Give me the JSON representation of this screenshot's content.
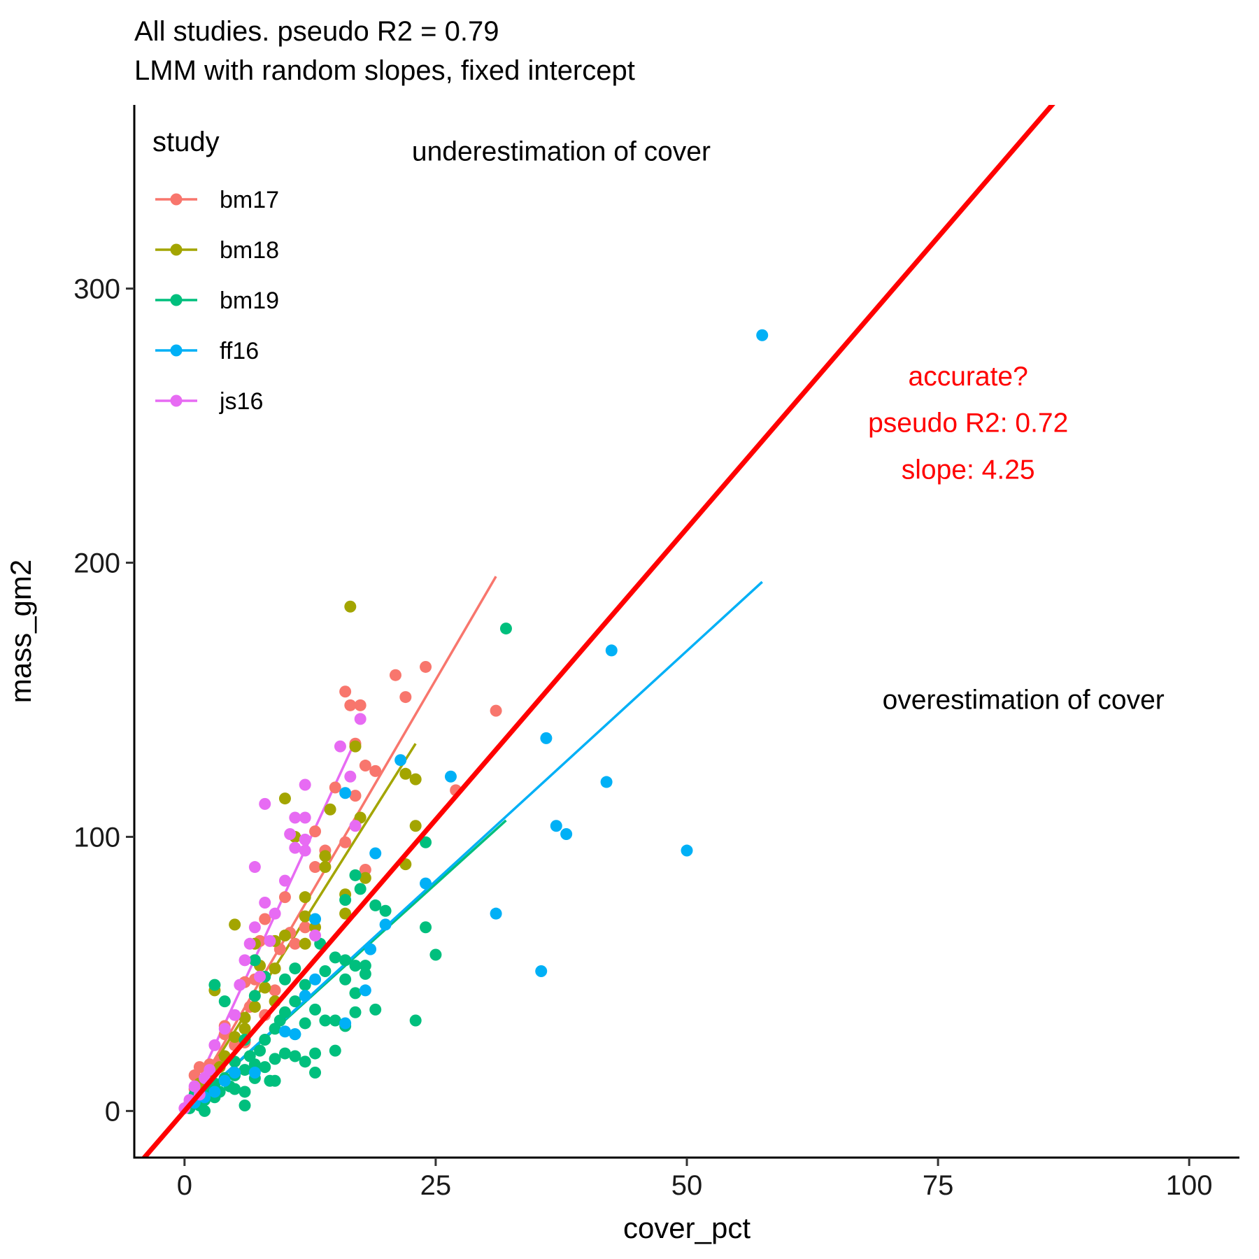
{
  "chart_data": {
    "type": "scatter",
    "title": "All studies. pseudo R2 =  0.79",
    "subtitle": "LMM with random slopes, fixed intercept",
    "xlabel": "cover_pct",
    "ylabel": "mass_gm2",
    "xlim": [
      -5,
      105
    ],
    "ylim": [
      -17,
      367
    ],
    "xticks": [
      0,
      25,
      50,
      75,
      100
    ],
    "yticks": [
      0,
      100,
      200,
      300
    ],
    "grid": false,
    "legend": {
      "title": "study",
      "position": "top-left",
      "items": [
        {
          "label": "bm17",
          "color": "#F8766D"
        },
        {
          "label": "bm18",
          "color": "#A3A500"
        },
        {
          "label": "bm19",
          "color": "#00BF7D"
        },
        {
          "label": "ff16",
          "color": "#00B0F6"
        },
        {
          "label": "js16",
          "color": "#E76BF3"
        }
      ]
    },
    "series": [
      {
        "name": "bm17",
        "color": "#F8766D",
        "fit": {
          "x": [
            0,
            31
          ],
          "y": [
            0,
            195
          ]
        },
        "points": [
          [
            0.5,
            3
          ],
          [
            1,
            8
          ],
          [
            1,
            13
          ],
          [
            1.5,
            16
          ],
          [
            2,
            12
          ],
          [
            2.5,
            17
          ],
          [
            3,
            6
          ],
          [
            3.5,
            18
          ],
          [
            4,
            31
          ],
          [
            5,
            14
          ],
          [
            5,
            24
          ],
          [
            6,
            25
          ],
          [
            6.5,
            38
          ],
          [
            7,
            48
          ],
          [
            7,
            55
          ],
          [
            7.5,
            62
          ],
          [
            8,
            70
          ],
          [
            9,
            44
          ],
          [
            9.5,
            59
          ],
          [
            10,
            78
          ],
          [
            10.5,
            65
          ],
          [
            11,
            61
          ],
          [
            12,
            67
          ],
          [
            13,
            89
          ],
          [
            13,
            102
          ],
          [
            14,
            95
          ],
          [
            15,
            118
          ],
          [
            16,
            98
          ],
          [
            17,
            134
          ],
          [
            16.5,
            148
          ],
          [
            16,
            153
          ],
          [
            17.5,
            148
          ],
          [
            18,
            88
          ],
          [
            17,
            115
          ],
          [
            18,
            126
          ],
          [
            19,
            124
          ],
          [
            21,
            159
          ],
          [
            22,
            151
          ],
          [
            24,
            162
          ],
          [
            27,
            117
          ],
          [
            31,
            146
          ],
          [
            4,
            28
          ],
          [
            8,
            35
          ],
          [
            6,
            47
          ]
        ]
      },
      {
        "name": "bm18",
        "color": "#A3A500",
        "fit": {
          "x": [
            0,
            23
          ],
          "y": [
            0,
            134
          ]
        },
        "points": [
          [
            1,
            4
          ],
          [
            2,
            8
          ],
          [
            2.5,
            13
          ],
          [
            3,
            44
          ],
          [
            4,
            20
          ],
          [
            5,
            27
          ],
          [
            5,
            68
          ],
          [
            6,
            30
          ],
          [
            7,
            38
          ],
          [
            7,
            61
          ],
          [
            7.5,
            53
          ],
          [
            8,
            45
          ],
          [
            9,
            52
          ],
          [
            9,
            62
          ],
          [
            10,
            114
          ],
          [
            10,
            64
          ],
          [
            11,
            100
          ],
          [
            12,
            71
          ],
          [
            12,
            78
          ],
          [
            12,
            61
          ],
          [
            13,
            67
          ],
          [
            14,
            93
          ],
          [
            14,
            89
          ],
          [
            14.5,
            110
          ],
          [
            16,
            72
          ],
          [
            16,
            79
          ],
          [
            16.5,
            184
          ],
          [
            17,
            133
          ],
          [
            17.5,
            107
          ],
          [
            18,
            85
          ],
          [
            22,
            123
          ],
          [
            22,
            90
          ],
          [
            23,
            121
          ],
          [
            23,
            104
          ],
          [
            1.5,
            10
          ],
          [
            3.5,
            16
          ],
          [
            6,
            34
          ],
          [
            9,
            40
          ]
        ]
      },
      {
        "name": "bm19",
        "color": "#00BF7D",
        "fit": {
          "x": [
            0,
            32
          ],
          "y": [
            0,
            106
          ]
        },
        "points": [
          [
            0.5,
            1
          ],
          [
            1,
            3
          ],
          [
            1,
            6
          ],
          [
            1.5,
            2
          ],
          [
            2,
            0
          ],
          [
            2,
            4
          ],
          [
            2.5,
            8
          ],
          [
            3,
            5
          ],
          [
            3,
            10
          ],
          [
            3,
            46
          ],
          [
            3.5,
            7
          ],
          [
            4,
            12
          ],
          [
            4,
            40
          ],
          [
            4.5,
            9
          ],
          [
            5,
            13
          ],
          [
            5,
            8
          ],
          [
            5,
            18
          ],
          [
            6,
            2
          ],
          [
            6,
            7
          ],
          [
            6,
            15
          ],
          [
            6.5,
            20
          ],
          [
            7,
            12
          ],
          [
            7,
            17
          ],
          [
            7,
            42
          ],
          [
            7,
            55
          ],
          [
            7.5,
            22
          ],
          [
            8,
            16
          ],
          [
            8,
            26
          ],
          [
            8,
            49
          ],
          [
            8.5,
            11
          ],
          [
            9,
            11
          ],
          [
            9,
            19
          ],
          [
            9.5,
            33
          ],
          [
            10,
            21
          ],
          [
            10,
            36
          ],
          [
            10,
            48
          ],
          [
            11,
            20
          ],
          [
            11,
            28
          ],
          [
            11,
            40
          ],
          [
            12,
            18
          ],
          [
            12,
            32
          ],
          [
            12,
            46
          ],
          [
            13,
            14
          ],
          [
            13,
            21
          ],
          [
            13,
            37
          ],
          [
            13.5,
            61
          ],
          [
            14,
            33
          ],
          [
            14,
            51
          ],
          [
            15,
            22
          ],
          [
            15,
            33
          ],
          [
            15,
            56
          ],
          [
            16,
            31
          ],
          [
            16,
            55
          ],
          [
            16,
            48
          ],
          [
            16,
            77
          ],
          [
            17,
            36
          ],
          [
            17,
            43
          ],
          [
            17,
            86
          ],
          [
            17,
            53
          ],
          [
            17.5,
            81
          ],
          [
            18,
            50
          ],
          [
            18,
            53
          ],
          [
            19,
            37
          ],
          [
            19,
            75
          ],
          [
            20,
            73
          ],
          [
            23,
            33
          ],
          [
            24,
            67
          ],
          [
            24,
            98
          ],
          [
            25,
            57
          ],
          [
            32,
            176
          ],
          [
            11,
            52
          ],
          [
            6,
            26
          ],
          [
            9,
            30
          ]
        ]
      },
      {
        "name": "ff16",
        "color": "#00B0F6",
        "fit": {
          "x": [
            0,
            57.5
          ],
          "y": [
            0,
            193
          ]
        },
        "points": [
          [
            1,
            3
          ],
          [
            2,
            5
          ],
          [
            3,
            7
          ],
          [
            4,
            11
          ],
          [
            5,
            14
          ],
          [
            7,
            14
          ],
          [
            10,
            29
          ],
          [
            11,
            28
          ],
          [
            12,
            42
          ],
          [
            13,
            48
          ],
          [
            13,
            70
          ],
          [
            16,
            32
          ],
          [
            16,
            116
          ],
          [
            18,
            44
          ],
          [
            18.5,
            59
          ],
          [
            19,
            94
          ],
          [
            20,
            68
          ],
          [
            21.5,
            128
          ],
          [
            24,
            83
          ],
          [
            26.5,
            122
          ],
          [
            31,
            72
          ],
          [
            35.5,
            51
          ],
          [
            36,
            136
          ],
          [
            37,
            104
          ],
          [
            38,
            101
          ],
          [
            42,
            120
          ],
          [
            42.5,
            168
          ],
          [
            50,
            95
          ],
          [
            57.5,
            283
          ]
        ]
      },
      {
        "name": "js16",
        "color": "#E76BF3",
        "fit": {
          "x": [
            0,
            17
          ],
          "y": [
            0,
            135
          ]
        },
        "points": [
          [
            0,
            1
          ],
          [
            0.5,
            4
          ],
          [
            1,
            9
          ],
          [
            1.5,
            6
          ],
          [
            2,
            12
          ],
          [
            2.5,
            15
          ],
          [
            3,
            24
          ],
          [
            4,
            30
          ],
          [
            5,
            35
          ],
          [
            5.5,
            46
          ],
          [
            6,
            55
          ],
          [
            6.5,
            61
          ],
          [
            7,
            67
          ],
          [
            7,
            89
          ],
          [
            7.5,
            49
          ],
          [
            8,
            76
          ],
          [
            8,
            112
          ],
          [
            8.5,
            62
          ],
          [
            9,
            72
          ],
          [
            10,
            84
          ],
          [
            10.5,
            101
          ],
          [
            11,
            96
          ],
          [
            11,
            107
          ],
          [
            12,
            95
          ],
          [
            12,
            99
          ],
          [
            12,
            107
          ],
          [
            12,
            119
          ],
          [
            13,
            64
          ],
          [
            15.5,
            133
          ],
          [
            16.5,
            122
          ],
          [
            17,
            104
          ],
          [
            17.5,
            143
          ]
        ]
      }
    ],
    "reference_line": {
      "color": "#FF0000",
      "slope": 4.25,
      "intercept": 0
    },
    "annotations": [
      {
        "text": "underestimation of cover",
        "x": 37.5,
        "y": 350,
        "color": "#000000"
      },
      {
        "text": "overestimation of cover",
        "x": 83.5,
        "y": 150,
        "color": "#000000"
      },
      {
        "text": "accurate?",
        "x": 78,
        "y": 268,
        "color": "#FF0000"
      },
      {
        "text": "pseudo R2: 0.72",
        "x": 78,
        "y": 251,
        "color": "#FF0000"
      },
      {
        "text": "slope:  4.25",
        "x": 78,
        "y": 234,
        "color": "#FF0000"
      }
    ]
  }
}
